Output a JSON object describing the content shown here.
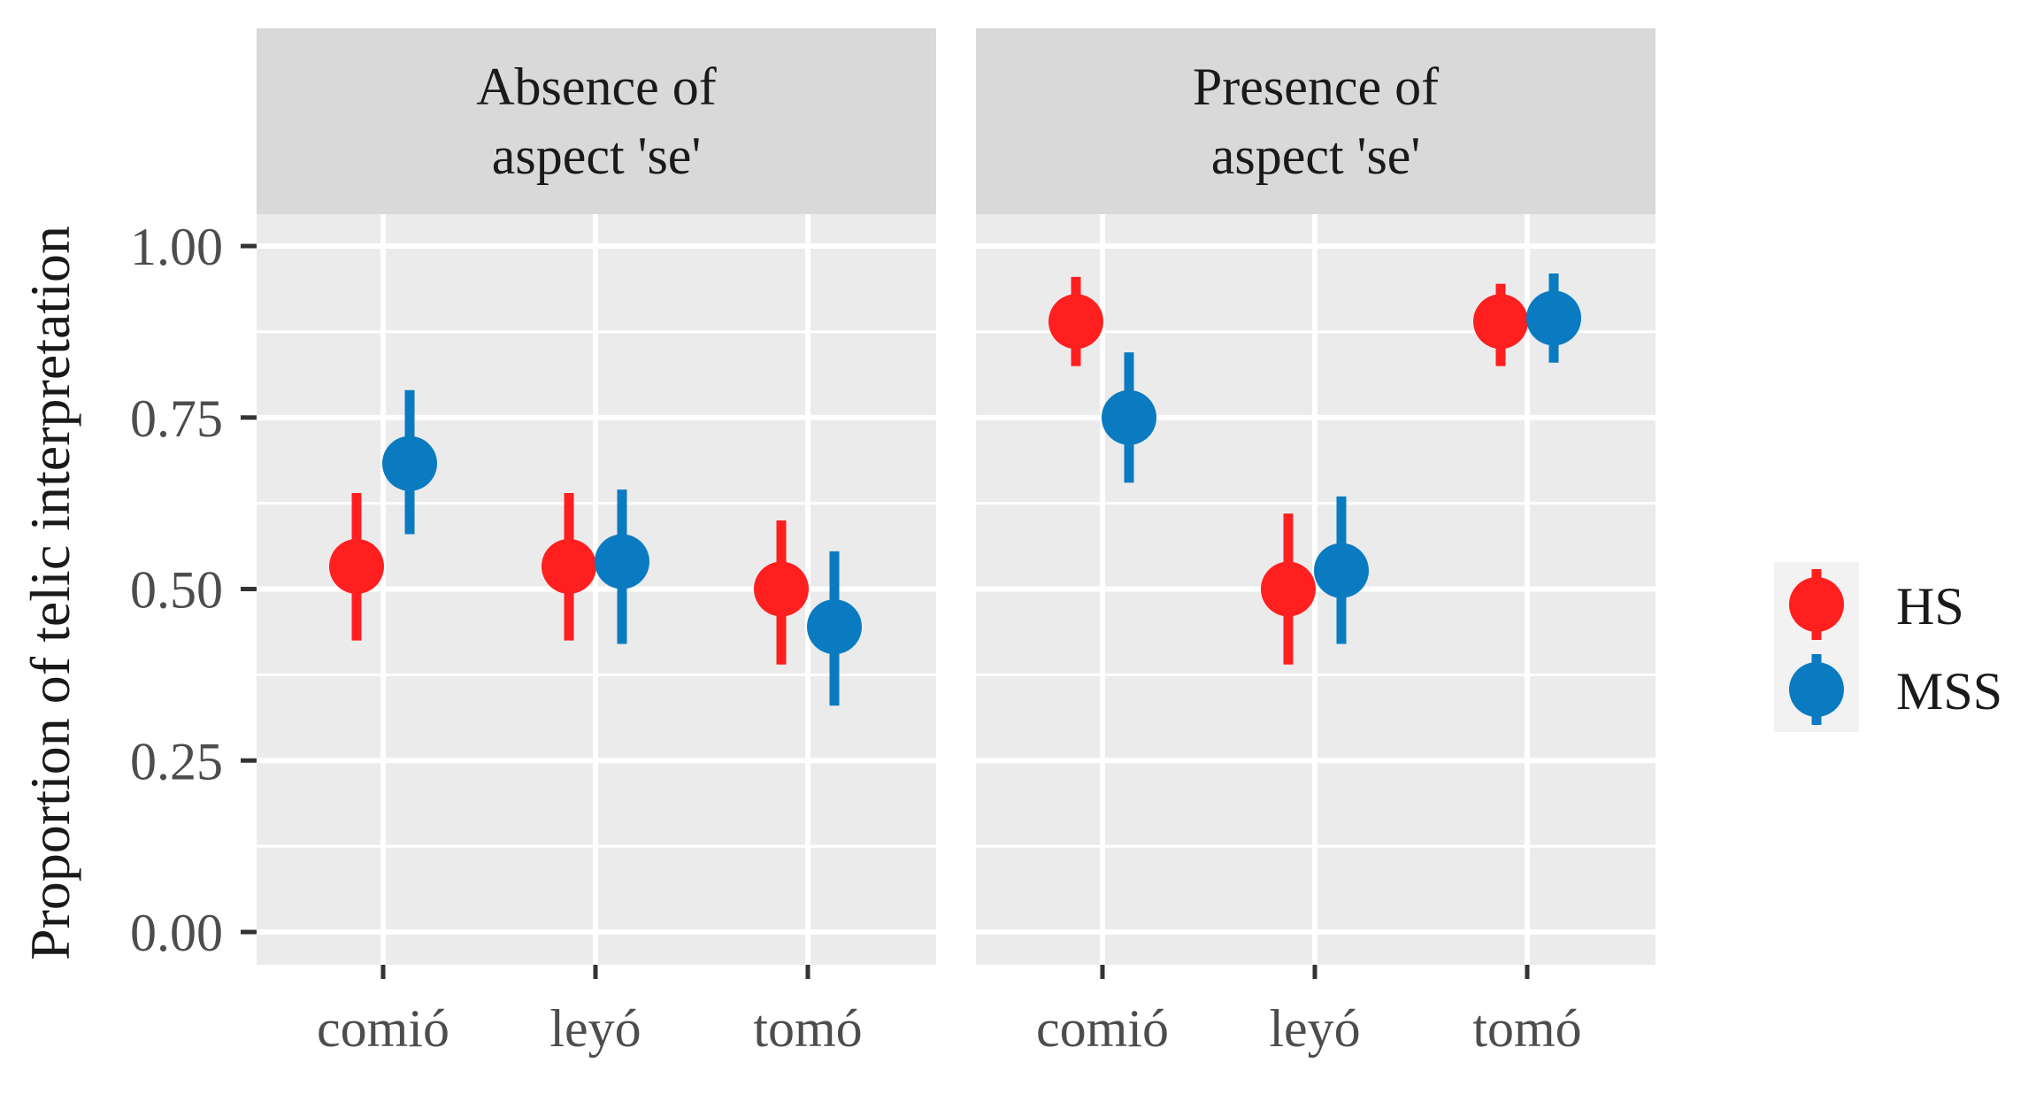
{
  "chart_data": {
    "type": "scatter",
    "subtype": "point-range, faceted",
    "ylabel": "Proportion of telic interpretation",
    "xlabel": "",
    "ylim": [
      0,
      1
    ],
    "yticks": [
      0,
      0.25,
      0.5,
      0.75,
      1
    ],
    "ytick_labels": [
      "0.00",
      "0.25",
      "0.50",
      "0.75",
      "1.00"
    ],
    "categories": [
      "comió",
      "leyó",
      "tomó"
    ],
    "grid": true,
    "legend": {
      "position": "right",
      "entries": [
        {
          "name": "HS",
          "color": "#FF1F1F"
        },
        {
          "name": "MSS",
          "color": "#0A7BC1"
        }
      ]
    },
    "facets": [
      {
        "title_line1": "Absence of",
        "title_line2": "aspect 'se'",
        "series": [
          {
            "name": "HS",
            "values": [
              0.533,
              0.533,
              0.5
            ],
            "lower": [
              0.425,
              0.425,
              0.39
            ],
            "upper": [
              0.64,
              0.64,
              0.6
            ]
          },
          {
            "name": "MSS",
            "values": [
              0.683,
              0.54,
              0.445
            ],
            "lower": [
              0.58,
              0.42,
              0.33
            ],
            "upper": [
              0.79,
              0.645,
              0.555
            ]
          }
        ]
      },
      {
        "title_line1": "Presence of",
        "title_line2": "aspect 'se'",
        "series": [
          {
            "name": "HS",
            "values": [
              0.89,
              0.5,
              0.89
            ],
            "lower": [
              0.825,
              0.39,
              0.825
            ],
            "upper": [
              0.955,
              0.61,
              0.945
            ]
          },
          {
            "name": "MSS",
            "values": [
              0.75,
              0.527,
              0.895
            ],
            "lower": [
              0.655,
              0.42,
              0.83
            ],
            "upper": [
              0.845,
              0.635,
              0.96
            ]
          }
        ]
      }
    ]
  }
}
